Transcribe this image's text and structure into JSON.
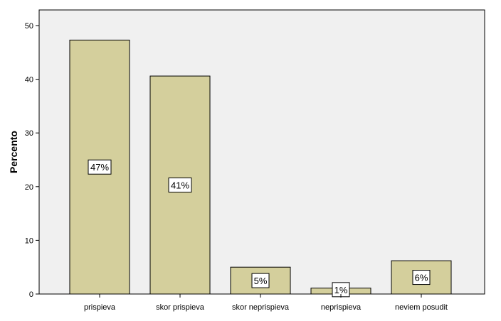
{
  "chart_data": {
    "type": "bar",
    "categories": [
      "prispieva",
      "skor prispieva",
      "skor neprispieva",
      "neprispieva",
      "neviem posudit"
    ],
    "values": [
      47.3,
      40.6,
      5.0,
      1.1,
      6.2
    ],
    "data_labels": [
      "47%",
      "41%",
      "5%",
      "1%",
      "6%"
    ],
    "xlabel": "",
    "ylabel": "Percento",
    "ylim": [
      0,
      50
    ],
    "yticks": [
      0,
      10,
      20,
      30,
      40,
      50
    ],
    "grid": false,
    "legend": "none"
  },
  "colors": {
    "bar_fill": "#D4CF9C",
    "plot_background": "#F0F0F0",
    "outline": "#000000"
  }
}
